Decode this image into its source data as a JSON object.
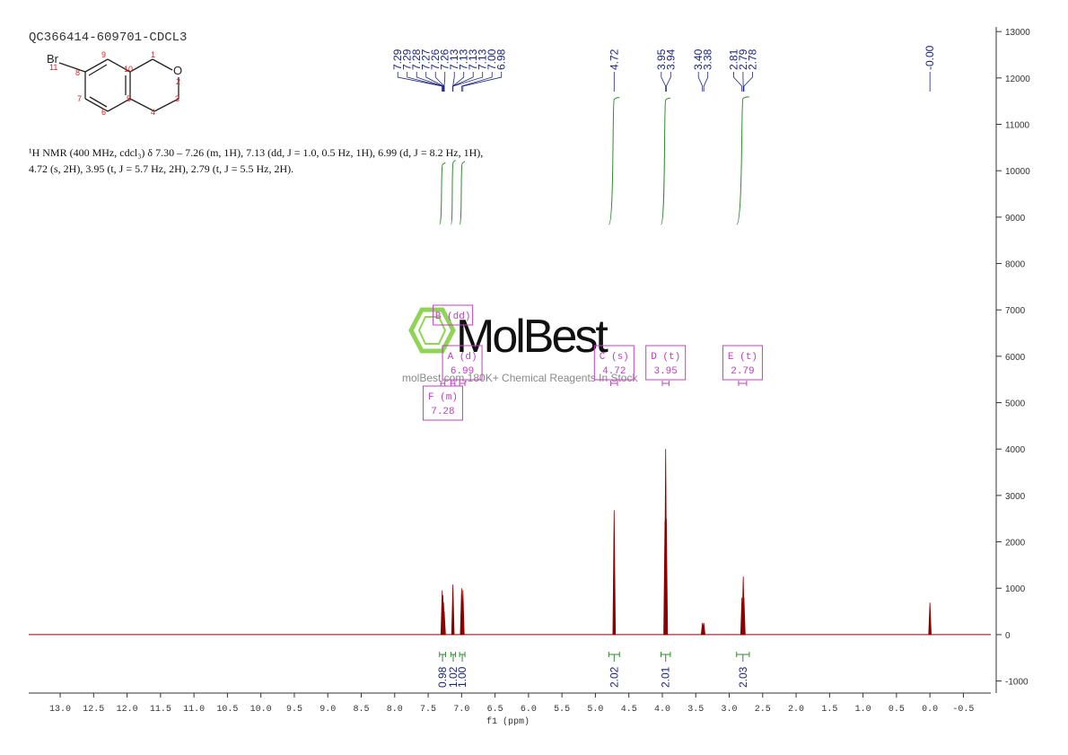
{
  "chart_data": {
    "type": "nmr",
    "title": "QC366414-609701-CDCL3",
    "description": [
      "¹H NMR (400 MHz, cdcl₃) δ 7.30 – 7.26 (m, 1H), 7.13 (dd, J = 1.0, 0.5 Hz, 1H), 6.99 (d, J = 8.2 Hz, 1H),",
      "4.72 (s, 2H), 3.95 (t, J = 5.7 Hz, 2H), 2.79 (t, J = 5.5 Hz, 2H)."
    ],
    "x_label": "f1 (ppm)",
    "structure_labels": [
      "Br",
      "11",
      "8",
      "9",
      "10",
      "1",
      "O",
      "2",
      "3",
      "4",
      "5",
      "6",
      "7"
    ],
    "watermark": [
      "MolBest",
      "molBest.com,180K+ Chemical Reagents In Stock"
    ],
    "xlim": [
      13.47,
      -0.91
    ],
    "ylim": [
      -1260,
      13100
    ],
    "xticks": [
      {
        "value": 13,
        "label": "13.0"
      },
      12.5,
      {
        "value": 12,
        "label": "12.0"
      },
      11.5,
      {
        "value": 11,
        "label": "11.0"
      },
      10.5,
      {
        "value": 10,
        "label": "10.0"
      },
      9.5,
      {
        "value": 9,
        "label": "9.0"
      },
      8.5,
      {
        "value": 8,
        "label": "8.0"
      },
      7.5,
      {
        "value": 7,
        "label": "7.0"
      },
      6.5,
      {
        "value": 6,
        "label": "6.0"
      },
      5.5,
      {
        "value": 5,
        "label": "5.0"
      },
      4.5,
      {
        "value": 4,
        "label": "4.0"
      },
      3.5,
      {
        "value": 3,
        "label": "3.0"
      },
      2.5,
      {
        "value": 2,
        "label": "2.0"
      },
      1.5,
      {
        "value": 1,
        "label": "1.0"
      },
      0.5,
      {
        "value": 0,
        "label": "0.0"
      },
      -0.5
    ],
    "yticks": [
      -1000,
      0,
      1000,
      2000,
      3000,
      4000,
      5000,
      6000,
      7000,
      8000,
      9000,
      10000,
      11000,
      12000,
      13000
    ],
    "color": "#8b0000",
    "x": [
      7.29,
      7.28,
      7.27,
      7.26,
      7.13,
      7.0,
      6.98,
      4.72,
      3.96,
      3.95,
      3.94,
      3.4,
      3.38,
      2.81,
      2.79,
      2.78,
      0.0
    ],
    "values": [
      950,
      850,
      700,
      500,
      1080,
      1000,
      960,
      2680,
      2450,
      4000,
      2500,
      250,
      250,
      800,
      1250,
      800,
      690
    ],
    "peak_labels": [
      7.29,
      7.29,
      7.28,
      7.27,
      7.26,
      7.26,
      7.13,
      7.13,
      7.13,
      7.13,
      {
        "value": 7,
        "label": "7.00"
      },
      6.98,
      4.72,
      3.95,
      3.94,
      {
        "value": 3.4,
        "label": "3.40"
      },
      3.38,
      2.81,
      2.79,
      2.78,
      {
        "value": 0,
        "label": "-0.00"
      }
    ],
    "integrals": [
      {
        "value": 0.98,
        "from": 7.33,
        "to": 7.24
      },
      {
        "value": 1.02,
        "from": 7.16,
        "to": 7.09
      },
      {
        "value": 1,
        "label": "1.00",
        "from": 7.03,
        "to": 6.95
      },
      {
        "value": 2.02,
        "from": 4.8,
        "to": 4.64
      },
      {
        "value": 2.01,
        "from": 4.02,
        "to": 3.88
      },
      {
        "value": 2.03,
        "from": 2.89,
        "to": 2.7
      }
    ],
    "multiplets": [
      {
        "name": "A (d)",
        "shift": 6.99,
        "range": [
          7.03,
          6.95
        ]
      },
      {
        "name": "B (dd)",
        "range": [
          7.16,
          7.1
        ]
      },
      {
        "name": "C (s)",
        "shift": 4.72,
        "range": [
          4.77,
          4.67
        ]
      },
      {
        "name": "D (t)",
        "shift": 3.95,
        "range": [
          4.0,
          3.9
        ]
      },
      {
        "name": "E (t)",
        "shift": 2.79,
        "range": [
          2.86,
          2.74
        ]
      },
      {
        "name": "F (m)",
        "shift": 7.28,
        "range": [
          7.31,
          7.25
        ]
      }
    ]
  }
}
